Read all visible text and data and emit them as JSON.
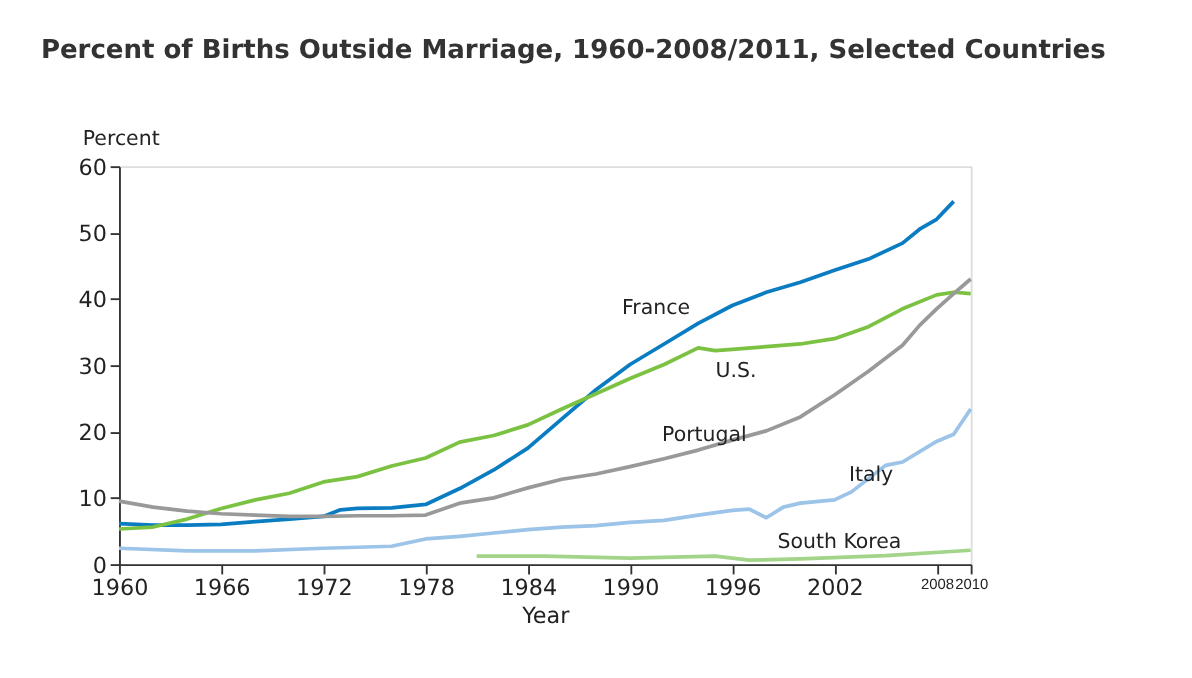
{
  "chart_data": {
    "type": "line",
    "title": "Percent of Births Outside Marriage, 1960-2008/2011, Selected Countries",
    "xlabel": "Year",
    "ylabel": "Percent",
    "xlim": [
      1960,
      2010
    ],
    "xticks": [
      1960,
      1966,
      1972,
      1978,
      1984,
      1990,
      1996,
      2002,
      2008,
      2010
    ],
    "ylim": [
      0,
      60
    ],
    "yticks": [
      0,
      10,
      20,
      30,
      40,
      50,
      60
    ],
    "grid": false,
    "legend": false,
    "marker": "none",
    "line_style": "solid",
    "series": [
      {
        "name": "France",
        "color": "#0a7cc1",
        "x": [
          1960,
          1962,
          1964,
          1966,
          1968,
          1970,
          1972,
          1973,
          1974,
          1976,
          1978,
          1980,
          1982,
          1984,
          1986,
          1988,
          1990,
          1992,
          1994,
          1996,
          1998,
          2000,
          2002,
          2004,
          2006,
          2007,
          2008,
          2009
        ],
        "values": [
          6.1,
          5.9,
          5.9,
          6.0,
          6.4,
          6.8,
          7.2,
          8.2,
          8.4,
          8.5,
          9.0,
          11.4,
          14.2,
          17.5,
          21.9,
          26.3,
          30.1,
          33.2,
          36.3,
          39.0,
          41.0,
          42.5,
          44.3,
          46.0,
          48.4,
          50.5,
          52.0,
          54.7
        ]
      },
      {
        "name": "U.S.",
        "color": "#7cc242",
        "x": [
          1960,
          1962,
          1964,
          1966,
          1968,
          1970,
          1972,
          1974,
          1976,
          1978,
          1980,
          1982,
          1984,
          1986,
          1988,
          1990,
          1992,
          1994,
          1995,
          1996,
          1998,
          2000,
          2002,
          2004,
          2006,
          2008,
          2009,
          2010
        ],
        "values": [
          5.3,
          5.6,
          6.8,
          8.4,
          9.7,
          10.7,
          12.4,
          13.2,
          14.8,
          16.0,
          18.4,
          19.4,
          21.0,
          23.4,
          25.7,
          28.0,
          30.1,
          32.6,
          32.2,
          32.4,
          32.8,
          33.2,
          34.0,
          35.8,
          38.5,
          40.6,
          41.0,
          40.8
        ]
      },
      {
        "name": "Portugal",
        "color": "#999999",
        "x": [
          1960,
          1962,
          1964,
          1966,
          1968,
          1970,
          1972,
          1974,
          1976,
          1978,
          1980,
          1982,
          1984,
          1986,
          1988,
          1990,
          1992,
          1994,
          1996,
          1998,
          2000,
          2002,
          2004,
          2006,
          2007,
          2008,
          2009,
          2010
        ],
        "values": [
          9.5,
          8.6,
          8.0,
          7.6,
          7.4,
          7.2,
          7.2,
          7.3,
          7.3,
          7.4,
          9.2,
          10.0,
          11.5,
          12.8,
          13.6,
          14.7,
          15.9,
          17.2,
          18.7,
          20.1,
          22.2,
          25.5,
          29.1,
          33.0,
          36.0,
          38.5,
          40.8,
          43.0
        ]
      },
      {
        "name": "Italy",
        "color": "#9cc3e8",
        "x": [
          1960,
          1964,
          1968,
          1972,
          1976,
          1978,
          1980,
          1982,
          1984,
          1986,
          1988,
          1990,
          1992,
          1994,
          1996,
          1997,
          1998,
          1999,
          2000,
          2002,
          2003,
          2005,
          2006,
          2008,
          2009,
          2010
        ],
        "values": [
          2.4,
          2.0,
          2.0,
          2.4,
          2.7,
          3.8,
          4.2,
          4.7,
          5.2,
          5.6,
          5.8,
          6.3,
          6.6,
          7.4,
          8.1,
          8.3,
          7.0,
          8.6,
          9.2,
          9.7,
          10.9,
          14.9,
          15.4,
          18.5,
          19.6,
          23.4
        ]
      },
      {
        "name": "South Korea",
        "color": "#a3d48a",
        "x": [
          1981,
          1985,
          1990,
          1995,
          1997,
          2000,
          2005,
          2010
        ],
        "values": [
          1.2,
          1.2,
          0.9,
          1.2,
          0.6,
          0.8,
          1.3,
          2.1
        ]
      }
    ]
  }
}
